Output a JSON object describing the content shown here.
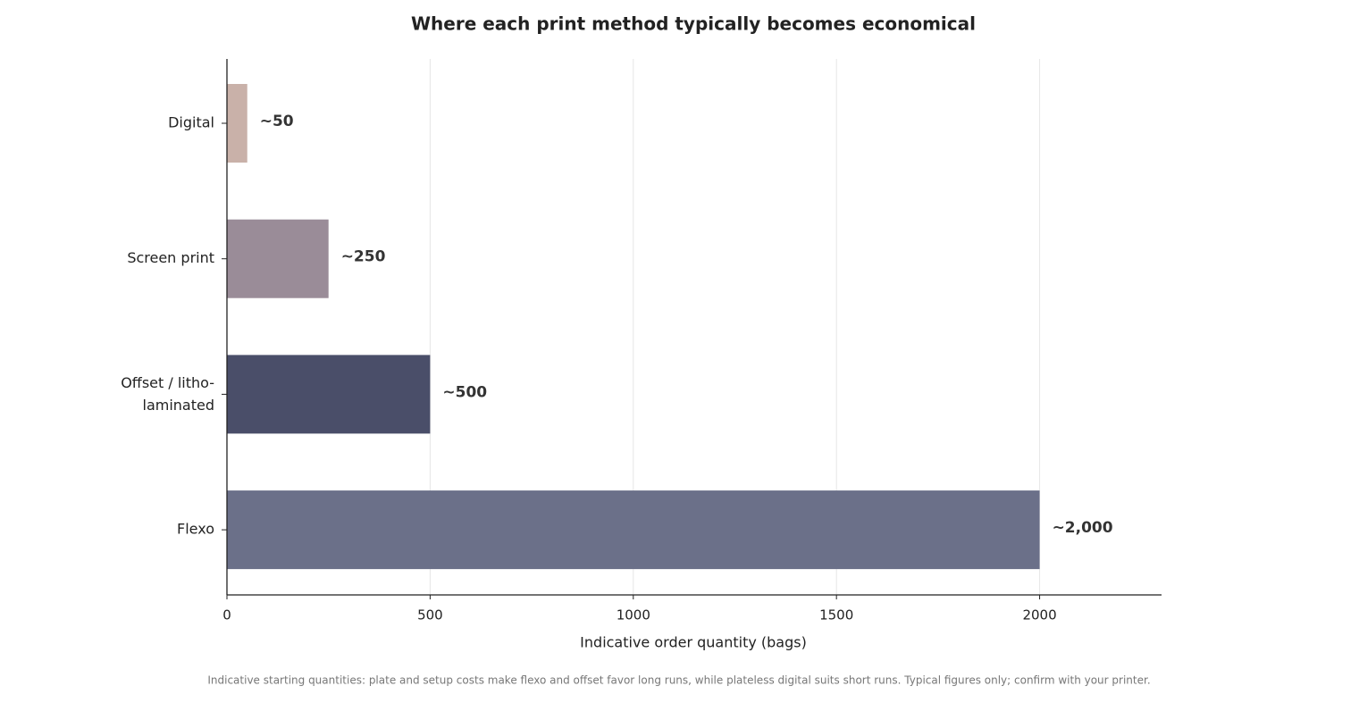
{
  "chart_data": {
    "type": "bar",
    "orientation": "horizontal",
    "title": "Where each print method typically becomes economical",
    "x_label": "Indicative order quantity (bags)",
    "footnote": "Indicative starting quantities: plate and setup costs make flexo and offset favor long runs, while plateless digital suits short runs. Typical figures only; confirm with your printer.",
    "categories": [
      "Digital",
      "Screen print",
      "Offset / litho-\nlaminated",
      "Flexo"
    ],
    "values": [
      50,
      250,
      500,
      2000
    ],
    "value_labels": [
      "~50",
      "~250",
      "~500",
      "~2,000"
    ],
    "colors": [
      "#c9b1a9",
      "#9a8c98",
      "#4a4e69",
      "#6b7089"
    ],
    "xlim": [
      0,
      2300
    ],
    "xticks": [
      0,
      500,
      1000,
      1500,
      2000
    ],
    "grid": true
  }
}
